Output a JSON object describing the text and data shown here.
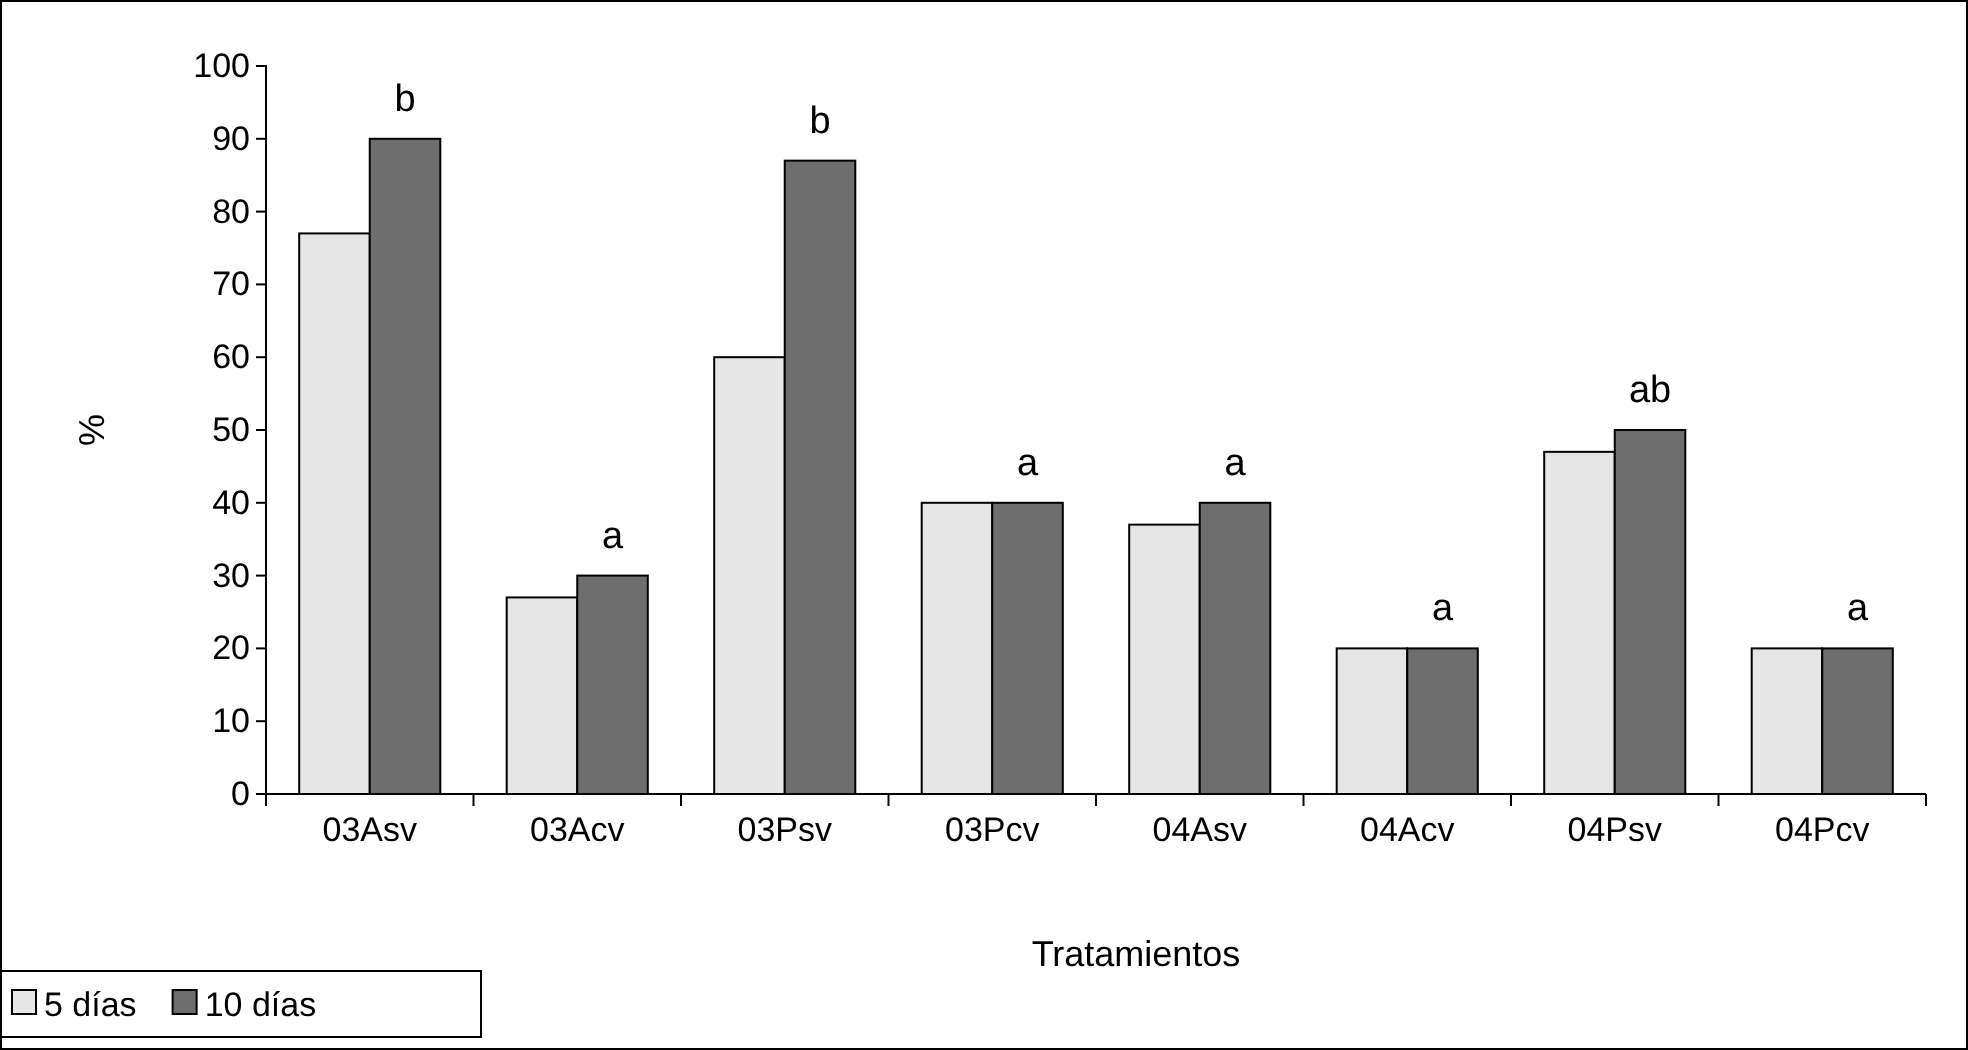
{
  "chart_data": {
    "type": "bar",
    "xlabel": "Tratamientos",
    "ylabel": "%",
    "categories": [
      "03Asv",
      "03Acv",
      "03Psv",
      "03Pcv",
      "04Asv",
      "04Acv",
      "04Psv",
      "04Pcv"
    ],
    "series": [
      {
        "name": "5 días",
        "color": "#e6e6e6",
        "values": [
          77,
          27,
          60,
          40,
          37,
          20,
          47,
          20
        ]
      },
      {
        "name": "10 días",
        "color": "#6e6e6e",
        "values": [
          90,
          30,
          87,
          40,
          40,
          20,
          50,
          20
        ]
      }
    ],
    "ylim": [
      0,
      100
    ],
    "yticks": [
      0,
      10,
      20,
      30,
      40,
      50,
      60,
      70,
      80,
      90,
      100
    ],
    "grid": false,
    "legend": "bottom left",
    "annotations": [
      {
        "text": "b",
        "x": "03Asv",
        "y": 90
      },
      {
        "text": "a",
        "x": "03Acv",
        "y": 30
      },
      {
        "text": "b",
        "x": "03Psv",
        "y": 87
      },
      {
        "text": "a",
        "x": "03Pcv",
        "y": 40
      },
      {
        "text": "a",
        "x": "04Asv",
        "y": 40
      },
      {
        "text": "a",
        "x": "04Acv",
        "y": 20
      },
      {
        "text": "ab",
        "x": "04Psv",
        "y": 50
      },
      {
        "text": "a",
        "x": "04Pcv",
        "y": 20
      }
    ]
  }
}
